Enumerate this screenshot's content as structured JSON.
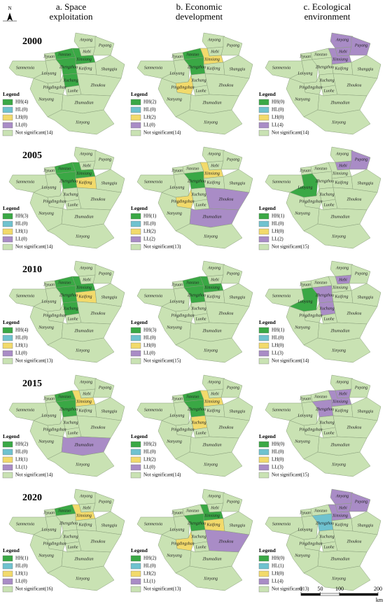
{
  "north": "N",
  "columns": [
    {
      "title": [
        "a. Space",
        "exploitation"
      ]
    },
    {
      "title": [
        "b. Economic",
        "development"
      ]
    },
    {
      "title": [
        "c. Ecological",
        "environment"
      ]
    }
  ],
  "years": [
    "2000",
    "2005",
    "2010",
    "2015",
    "2020"
  ],
  "legend_title": "Legend",
  "legend_colors": [
    "#3aa845",
    "#6fc2cf",
    "#f2da6b",
    "#a98cc6",
    "#c9e2b3"
  ],
  "cities": [
    "Anyang",
    "Hebi",
    "Puyang",
    "Xinxiang",
    "Jiaozuo",
    "Jiyuan",
    "Sanmenxia",
    "Luoyang",
    "Zhengzhou",
    "Kaifeng",
    "Shangqiu",
    "Xuchang",
    "Pingdingshan",
    "Luohe",
    "Zhoukou",
    "Nanyang",
    "Zhumadian",
    "Xinyang"
  ],
  "panels": [
    [
      {
        "legend": [
          "HH(4)",
          "HL(0)",
          "LH(0)",
          "LL(0)",
          "Not significant(14)"
        ],
        "regions": [
          4,
          4,
          4,
          0,
          0,
          4,
          4,
          4,
          0,
          4,
          4,
          0,
          4,
          4,
          4,
          4,
          4,
          4
        ]
      },
      {
        "legend": [
          "HH(2)",
          "HL(0)",
          "LH(2)",
          "LL(0)",
          "Not significant(14)"
        ],
        "regions": [
          4,
          4,
          4,
          2,
          0,
          4,
          4,
          4,
          0,
          4,
          4,
          4,
          2,
          4,
          4,
          4,
          4,
          4
        ]
      },
      {
        "legend": [
          "HH(0)",
          "HL(0)",
          "LH(0)",
          "LL(4)",
          "Not significant(14)"
        ],
        "regions": [
          3,
          3,
          3,
          3,
          4,
          4,
          4,
          4,
          4,
          4,
          4,
          4,
          4,
          4,
          4,
          4,
          4,
          4
        ]
      }
    ],
    [
      {
        "legend": [
          "HH(3)",
          "HL(0)",
          "LH(1)",
          "LL(0)",
          "Not significant(14)"
        ],
        "regions": [
          4,
          4,
          4,
          0,
          0,
          4,
          4,
          4,
          0,
          2,
          4,
          4,
          4,
          4,
          4,
          4,
          4,
          4
        ]
      },
      {
        "legend": [
          "HH(1)",
          "HL(0)",
          "LH(2)",
          "LL(2)",
          "Not significant(13)"
        ],
        "regions": [
          4,
          4,
          4,
          2,
          4,
          4,
          4,
          4,
          0,
          4,
          4,
          4,
          2,
          4,
          3,
          4,
          3,
          4
        ]
      },
      {
        "legend": [
          "HH(1)",
          "HL(0)",
          "LH(0)",
          "LL(2)",
          "Not significant(15)"
        ],
        "regions": [
          4,
          3,
          3,
          4,
          4,
          4,
          4,
          0,
          4,
          4,
          4,
          4,
          4,
          4,
          4,
          4,
          4,
          4
        ]
      }
    ],
    [
      {
        "legend": [
          "HH(4)",
          "HL(0)",
          "LH(1)",
          "LL(0)",
          "Not significant(13)"
        ],
        "regions": [
          4,
          4,
          4,
          0,
          0,
          4,
          4,
          4,
          0,
          2,
          4,
          0,
          4,
          4,
          4,
          4,
          4,
          4
        ]
      },
      {
        "legend": [
          "HH(3)",
          "HL(0)",
          "LH(0)",
          "LL(0)",
          "Not significant(15)"
        ],
        "regions": [
          4,
          4,
          4,
          0,
          0,
          4,
          4,
          4,
          0,
          4,
          4,
          4,
          4,
          4,
          4,
          4,
          4,
          4
        ]
      },
      {
        "legend": [
          "HH(1)",
          "HL(0)",
          "LH(0)",
          "LL(3)",
          "Not significant(14)"
        ],
        "regions": [
          4,
          3,
          4,
          4,
          4,
          4,
          4,
          0,
          3,
          4,
          4,
          3,
          4,
          4,
          4,
          4,
          4,
          4
        ]
      }
    ],
    [
      {
        "legend": [
          "HH(2)",
          "HL(0)",
          "LH(1)",
          "LL(1)",
          "Not significant(14)"
        ],
        "regions": [
          4,
          4,
          4,
          2,
          0,
          4,
          4,
          4,
          0,
          4,
          4,
          4,
          4,
          4,
          4,
          4,
          3,
          4
        ]
      },
      {
        "legend": [
          "HH(2)",
          "HL(0)",
          "LH(2)",
          "LL(0)",
          "Not significant(14)"
        ],
        "regions": [
          4,
          4,
          4,
          2,
          0,
          4,
          4,
          4,
          0,
          4,
          4,
          2,
          4,
          4,
          4,
          4,
          4,
          4
        ]
      },
      {
        "legend": [
          "HH(0)",
          "HL(0)",
          "LH(0)",
          "LL(3)",
          "Not significant(15)"
        ],
        "regions": [
          4,
          3,
          4,
          3,
          4,
          4,
          4,
          4,
          3,
          4,
          4,
          4,
          4,
          4,
          4,
          4,
          4,
          4
        ]
      }
    ],
    [
      {
        "legend": [
          "HH(1)",
          "HL(0)",
          "LH(1)",
          "LL(0)",
          "Not significant(16)"
        ],
        "regions": [
          4,
          4,
          4,
          2,
          0,
          4,
          4,
          4,
          4,
          4,
          4,
          4,
          4,
          4,
          4,
          4,
          4,
          4
        ]
      },
      {
        "legend": [
          "HH(2)",
          "HL(0)",
          "LH(2)",
          "LL(1)",
          "Not significant(13)"
        ],
        "regions": [
          4,
          4,
          4,
          0,
          4,
          4,
          4,
          4,
          0,
          2,
          4,
          4,
          2,
          4,
          3,
          4,
          4,
          4
        ]
      },
      {
        "legend": [
          "HH(0)",
          "HL(1)",
          "LH(0)",
          "LL(4)",
          "Not significant(13)"
        ],
        "regions": [
          3,
          3,
          3,
          3,
          4,
          4,
          4,
          4,
          1,
          4,
          4,
          4,
          4,
          4,
          4,
          4,
          4,
          4
        ]
      }
    ]
  ],
  "scale": {
    "ticks": [
      0,
      50,
      100,
      200
    ],
    "unit": "km"
  }
}
